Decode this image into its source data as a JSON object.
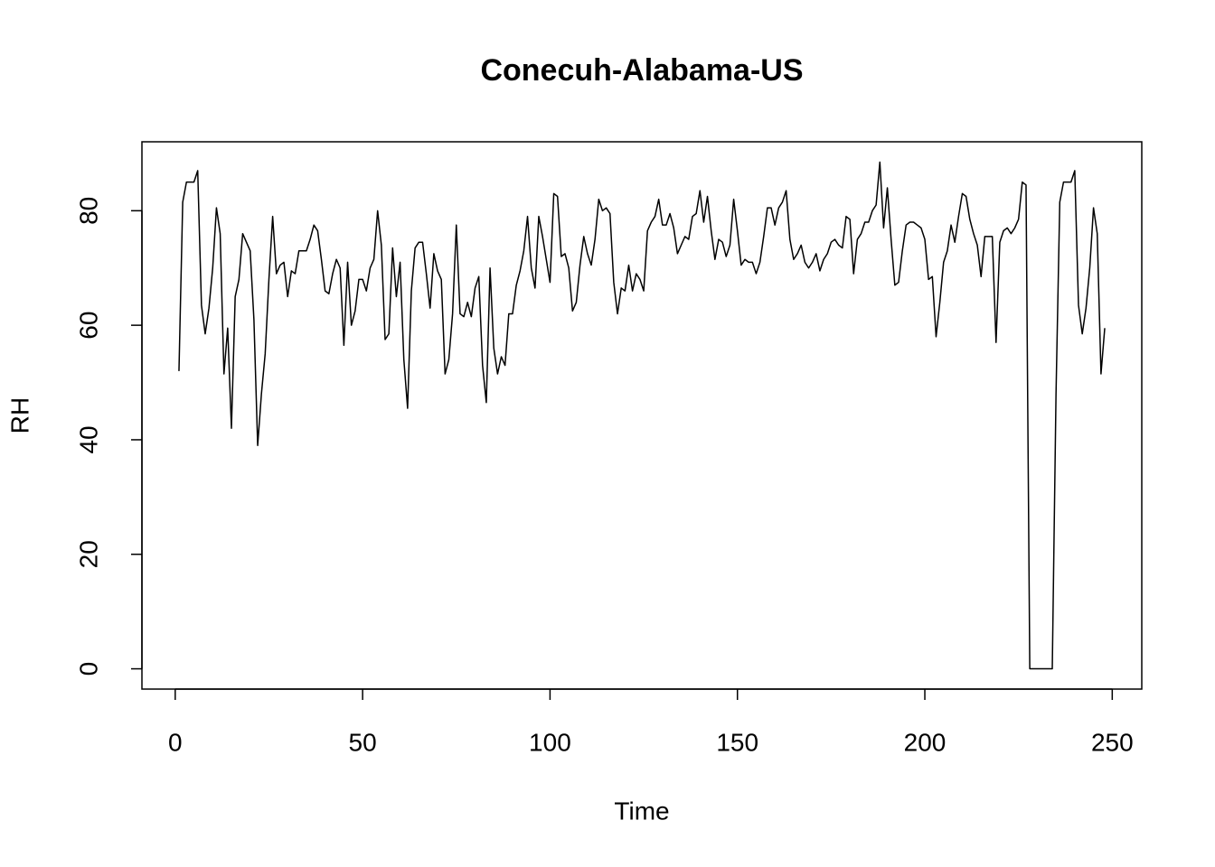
{
  "chart_data": {
    "type": "line",
    "title": "Conecuh-Alabama-US",
    "xlabel": "Time",
    "ylabel": "RH",
    "color": "#000000",
    "x": [
      1,
      2,
      3,
      4,
      5,
      6,
      7,
      8,
      9,
      10,
      11,
      12,
      13,
      14,
      15,
      16,
      17,
      18,
      19,
      20,
      21,
      22,
      23,
      24,
      25,
      26,
      27,
      28,
      29,
      30,
      31,
      32,
      33,
      34,
      35,
      36,
      37,
      38,
      39,
      40,
      41,
      42,
      43,
      44,
      45,
      46,
      47,
      48,
      49,
      50,
      51,
      52,
      53,
      54,
      55,
      56,
      57,
      58,
      59,
      60,
      61,
      62,
      63,
      64,
      65,
      66,
      67,
      68,
      69,
      70,
      71,
      72,
      73,
      74,
      75,
      76,
      77,
      78,
      79,
      80,
      81,
      82,
      83,
      84,
      85,
      86,
      87,
      88,
      89,
      90,
      91,
      92,
      93,
      94,
      95,
      96,
      97,
      98,
      99,
      100,
      101,
      102,
      103,
      104,
      105,
      106,
      107,
      108,
      109,
      110,
      111,
      112,
      113,
      114,
      115,
      116,
      117,
      118,
      119,
      120,
      121,
      122,
      123,
      124,
      125,
      126,
      127,
      128,
      129,
      130,
      131,
      132,
      133,
      134,
      135,
      136,
      137,
      138,
      139,
      140,
      141,
      142,
      143,
      144,
      145,
      146,
      147,
      148,
      149,
      150,
      151,
      152,
      153,
      154,
      155,
      156,
      157,
      158,
      159,
      160,
      161,
      162,
      163,
      164,
      165,
      166,
      167,
      168,
      169,
      170,
      171,
      172,
      173,
      174,
      175,
      176,
      177,
      178,
      179,
      180,
      181,
      182,
      183,
      184,
      185,
      186,
      187,
      188,
      189,
      190,
      191,
      192,
      193,
      194,
      195,
      196,
      197,
      198,
      199,
      200,
      201,
      202,
      203,
      204,
      205,
      206,
      207,
      208,
      209,
      210,
      211,
      212,
      213,
      214,
      215,
      216,
      217,
      218,
      219,
      220,
      221,
      222,
      223,
      224,
      225,
      226,
      227,
      228,
      229,
      230,
      231,
      232,
      233,
      234,
      235,
      236,
      237,
      238,
      239,
      240,
      241,
      242,
      243,
      244,
      245,
      246,
      247,
      248
    ],
    "values": [
      52,
      81.5,
      85,
      85,
      85,
      87,
      63.5,
      58.5,
      63,
      70,
      80.5,
      76,
      51.5,
      59.5,
      42,
      65,
      68,
      76,
      74.5,
      73,
      61,
      39,
      48,
      55,
      68,
      79,
      69,
      70.5,
      71,
      65,
      69.5,
      69,
      73,
      73,
      73,
      75,
      77.5,
      76.5,
      71.5,
      66,
      65.5,
      69,
      71.5,
      70,
      56.5,
      71,
      60,
      62.5,
      68,
      68,
      66,
      70,
      71.5,
      80,
      74,
      57.5,
      58.5,
      73.5,
      65,
      71,
      54,
      45.5,
      66,
      73.5,
      74.5,
      74.5,
      69,
      63,
      72.5,
      69.5,
      68,
      51.5,
      54,
      62,
      77.5,
      62,
      61.5,
      64,
      61.5,
      66.5,
      68.5,
      53,
      46.5,
      70,
      56,
      51.5,
      54.5,
      53,
      62,
      62,
      67,
      69.5,
      73,
      79,
      70,
      66.5,
      79,
      75.5,
      71.5,
      67.5,
      83,
      82.5,
      72,
      72.5,
      70,
      62.5,
      64,
      70.5,
      75.5,
      72.5,
      70.5,
      75,
      82,
      80,
      80.5,
      79.5,
      67.5,
      62,
      66.5,
      66,
      70.5,
      66,
      69,
      68,
      66,
      76.5,
      78,
      79,
      82,
      77.5,
      77.5,
      79.5,
      77,
      72.5,
      74,
      75.5,
      75,
      79,
      79.5,
      83.5,
      78,
      82.5,
      76.5,
      71.5,
      75,
      74.5,
      72,
      74,
      82,
      76.5,
      70.5,
      71.5,
      71,
      71,
      69,
      71,
      75.5,
      80.5,
      80.5,
      77.5,
      80.5,
      81.5,
      83.5,
      75,
      71.5,
      72.5,
      74,
      71,
      70,
      71,
      72.5,
      69.5,
      71.5,
      72.5,
      74.5,
      75,
      74,
      73.5,
      79,
      78.5,
      69,
      75,
      76,
      78,
      78,
      80,
      81,
      88.5,
      77,
      84,
      75,
      67,
      67.5,
      73,
      77.5,
      78,
      78,
      77.5,
      77,
      75,
      68,
      68.5,
      58,
      64,
      71,
      73,
      77.5,
      74.5,
      79,
      83,
      82.5,
      78.5,
      76,
      74,
      68.5,
      75.5,
      75.5,
      75.5,
      57,
      74.5,
      76.5,
      77,
      76,
      77,
      78.5,
      85,
      84.5,
      0,
      0,
      0,
      0,
      0,
      0,
      0,
      48,
      81.5,
      85,
      85,
      85,
      87,
      63.5,
      58.5,
      63,
      70,
      80.5,
      76,
      51.5,
      59.5
    ],
    "xlim": [
      -8.88,
      257.88
    ],
    "xticks": [
      0,
      50,
      100,
      150,
      200,
      250
    ],
    "ylim": [
      -3.54,
      92.04
    ],
    "yticks": [
      0,
      20,
      40,
      60,
      80
    ]
  }
}
